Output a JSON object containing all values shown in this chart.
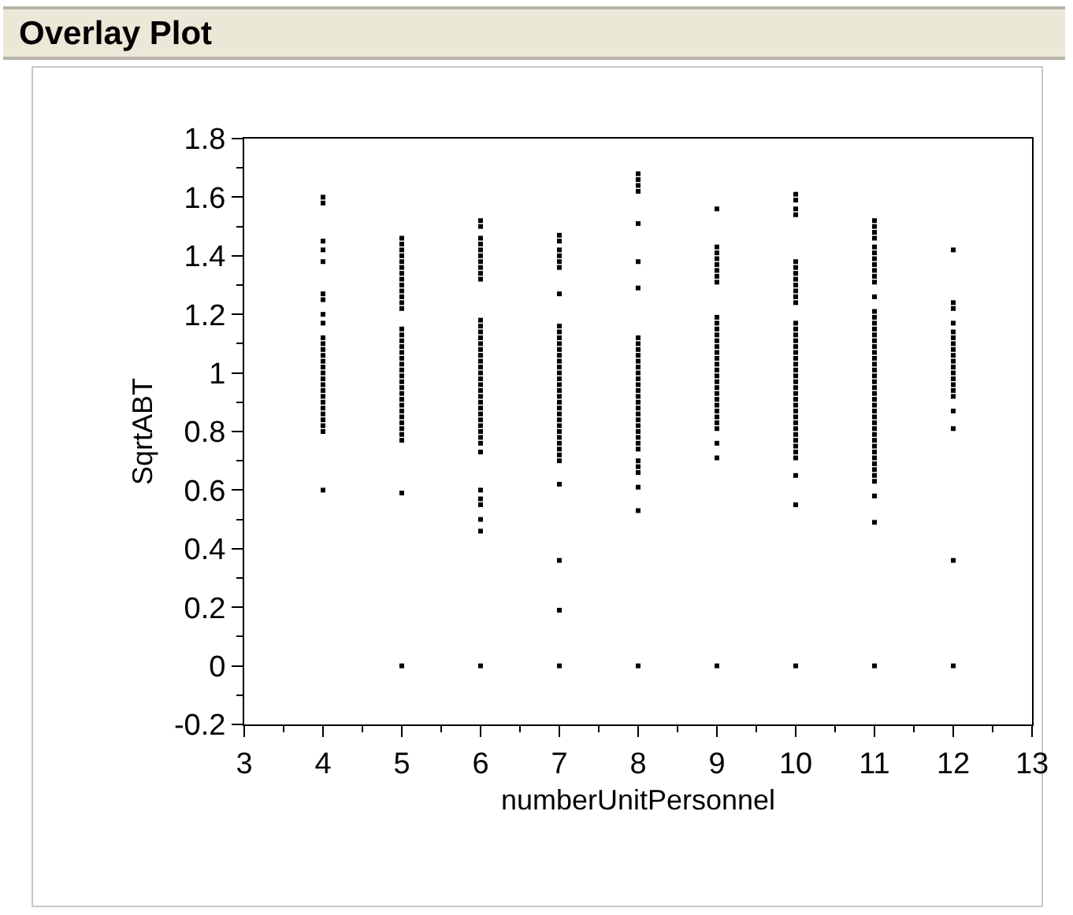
{
  "chart_data": {
    "type": "scatter",
    "title": "Overlay Plot",
    "xlabel": "numberUnitPersonnel",
    "ylabel": "SqrtABT",
    "marker": "square",
    "grid": false,
    "xlim": [
      3,
      13
    ],
    "xticks": [
      3,
      4,
      5,
      6,
      7,
      8,
      9,
      10,
      11,
      12,
      13
    ],
    "ylim": [
      -0.2,
      1.8
    ],
    "yticks": [
      -0.2,
      0,
      0.2,
      0.4,
      0.6,
      0.8,
      1,
      1.2,
      1.4,
      1.6,
      1.8
    ],
    "series": [
      {
        "color": "#000000",
        "x": [
          4,
          4,
          4,
          4,
          4,
          4,
          4,
          4,
          4,
          4,
          4,
          4,
          4,
          4,
          4,
          4,
          4,
          4,
          4,
          4,
          4,
          4,
          4,
          4,
          4,
          4,
          4
        ],
        "values": [
          1.6,
          1.58,
          1.45,
          1.42,
          1.38,
          1.27,
          1.25,
          1.2,
          1.17,
          1.12,
          1.1,
          1.08,
          1.06,
          1.04,
          1.02,
          1,
          0.98,
          0.96,
          0.94,
          0.92,
          0.9,
          0.88,
          0.86,
          0.84,
          0.82,
          0.8,
          0.6
        ]
      },
      {
        "color": "#000000",
        "x": [
          5,
          5,
          5,
          5,
          5,
          5,
          5,
          5,
          5,
          5,
          5,
          5,
          5,
          5,
          5,
          5,
          5,
          5,
          5,
          5,
          5,
          5,
          5,
          5,
          5,
          5,
          5,
          5,
          5,
          5,
          5,
          5,
          5,
          5,
          5
        ],
        "values": [
          1.46,
          1.44,
          1.42,
          1.4,
          1.38,
          1.36,
          1.34,
          1.32,
          1.3,
          1.28,
          1.26,
          1.24,
          1.22,
          1.15,
          1.13,
          1.11,
          1.09,
          1.07,
          1.05,
          1.03,
          1.01,
          0.99,
          0.97,
          0.95,
          0.93,
          0.91,
          0.89,
          0.87,
          0.85,
          0.83,
          0.81,
          0.79,
          0.77,
          0.59,
          0
        ]
      },
      {
        "color": "#000000",
        "x": [
          6,
          6,
          6,
          6,
          6,
          6,
          6,
          6,
          6,
          6,
          6,
          6,
          6,
          6,
          6,
          6,
          6,
          6,
          6,
          6,
          6,
          6,
          6,
          6,
          6,
          6,
          6,
          6,
          6,
          6,
          6,
          6,
          6,
          6,
          6,
          6,
          6,
          6,
          6
        ],
        "values": [
          1.52,
          1.5,
          1.46,
          1.44,
          1.42,
          1.4,
          1.38,
          1.36,
          1.34,
          1.32,
          1.18,
          1.16,
          1.14,
          1.12,
          1.1,
          1.08,
          1.06,
          1.04,
          1.02,
          1,
          0.98,
          0.96,
          0.94,
          0.92,
          0.9,
          0.88,
          0.86,
          0.84,
          0.82,
          0.8,
          0.78,
          0.76,
          0.73,
          0.6,
          0.57,
          0.55,
          0.5,
          0.46,
          0
        ]
      },
      {
        "color": "#000000",
        "x": [
          7,
          7,
          7,
          7,
          7,
          7,
          7,
          7,
          7,
          7,
          7,
          7,
          7,
          7,
          7,
          7,
          7,
          7,
          7,
          7,
          7,
          7,
          7,
          7,
          7,
          7,
          7,
          7,
          7,
          7,
          7,
          7,
          7,
          7,
          7
        ],
        "values": [
          1.47,
          1.45,
          1.42,
          1.4,
          1.38,
          1.36,
          1.27,
          1.16,
          1.14,
          1.12,
          1.1,
          1.08,
          1.06,
          1.04,
          1.02,
          1,
          0.98,
          0.96,
          0.94,
          0.92,
          0.9,
          0.88,
          0.86,
          0.84,
          0.82,
          0.8,
          0.78,
          0.76,
          0.74,
          0.72,
          0.7,
          0.62,
          0.36,
          0.19,
          0
        ]
      },
      {
        "color": "#000000",
        "x": [
          8,
          8,
          8,
          8,
          8,
          8,
          8,
          8,
          8,
          8,
          8,
          8,
          8,
          8,
          8,
          8,
          8,
          8,
          8,
          8,
          8,
          8,
          8,
          8,
          8,
          8,
          8,
          8,
          8,
          8,
          8,
          8,
          8
        ],
        "values": [
          1.68,
          1.66,
          1.64,
          1.62,
          1.51,
          1.38,
          1.29,
          1.12,
          1.1,
          1.08,
          1.06,
          1.04,
          1.02,
          1,
          0.98,
          0.96,
          0.94,
          0.92,
          0.9,
          0.88,
          0.86,
          0.84,
          0.82,
          0.8,
          0.78,
          0.76,
          0.74,
          0.7,
          0.68,
          0.66,
          0.61,
          0.53,
          0
        ]
      },
      {
        "color": "#000000",
        "x": [
          9,
          9,
          9,
          9,
          9,
          9,
          9,
          9,
          9,
          9,
          9,
          9,
          9,
          9,
          9,
          9,
          9,
          9,
          9,
          9,
          9,
          9,
          9,
          9,
          9,
          9,
          9,
          9,
          9,
          9,
          9
        ],
        "values": [
          1.56,
          1.43,
          1.41,
          1.39,
          1.37,
          1.35,
          1.33,
          1.31,
          1.19,
          1.17,
          1.15,
          1.13,
          1.11,
          1.09,
          1.07,
          1.05,
          1.03,
          1.01,
          0.99,
          0.97,
          0.95,
          0.93,
          0.91,
          0.89,
          0.87,
          0.85,
          0.83,
          0.81,
          0.76,
          0.71,
          0
        ]
      },
      {
        "color": "#000000",
        "x": [
          10,
          10,
          10,
          10,
          10,
          10,
          10,
          10,
          10,
          10,
          10,
          10,
          10,
          10,
          10,
          10,
          10,
          10,
          10,
          10,
          10,
          10,
          10,
          10,
          10,
          10,
          10,
          10,
          10,
          10,
          10,
          10,
          10,
          10,
          10,
          10,
          10,
          10,
          10
        ],
        "values": [
          1.61,
          1.59,
          1.56,
          1.54,
          1.38,
          1.36,
          1.34,
          1.32,
          1.3,
          1.28,
          1.26,
          1.24,
          1.17,
          1.15,
          1.13,
          1.11,
          1.09,
          1.07,
          1.05,
          1.03,
          1.01,
          0.99,
          0.97,
          0.95,
          0.93,
          0.91,
          0.89,
          0.87,
          0.85,
          0.83,
          0.81,
          0.79,
          0.77,
          0.75,
          0.73,
          0.71,
          0.65,
          0.55,
          0
        ]
      },
      {
        "color": "#000000",
        "x": [
          11,
          11,
          11,
          11,
          11,
          11,
          11,
          11,
          11,
          11,
          11,
          11,
          11,
          11,
          11,
          11,
          11,
          11,
          11,
          11,
          11,
          11,
          11,
          11,
          11,
          11,
          11,
          11,
          11,
          11,
          11,
          11,
          11,
          11,
          11,
          11,
          11,
          11,
          11,
          11,
          11,
          11,
          11,
          11,
          11
        ],
        "values": [
          1.52,
          1.5,
          1.48,
          1.46,
          1.43,
          1.41,
          1.39,
          1.37,
          1.35,
          1.33,
          1.31,
          1.26,
          1.21,
          1.19,
          1.17,
          1.15,
          1.13,
          1.11,
          1.09,
          1.07,
          1.05,
          1.03,
          1.01,
          0.99,
          0.97,
          0.95,
          0.93,
          0.91,
          0.89,
          0.87,
          0.85,
          0.83,
          0.81,
          0.79,
          0.77,
          0.75,
          0.73,
          0.71,
          0.69,
          0.67,
          0.65,
          0.63,
          0.58,
          0.49,
          0
        ]
      },
      {
        "color": "#000000",
        "x": [
          12,
          12,
          12,
          12,
          12,
          12,
          12,
          12,
          12,
          12,
          12,
          12,
          12,
          12,
          12,
          12,
          12,
          12,
          12,
          12
        ],
        "values": [
          1.42,
          1.24,
          1.22,
          1.17,
          1.14,
          1.12,
          1.1,
          1.08,
          1.06,
          1.04,
          1.02,
          1,
          0.98,
          0.96,
          0.94,
          0.92,
          0.87,
          0.81,
          0.36,
          0
        ]
      }
    ]
  }
}
